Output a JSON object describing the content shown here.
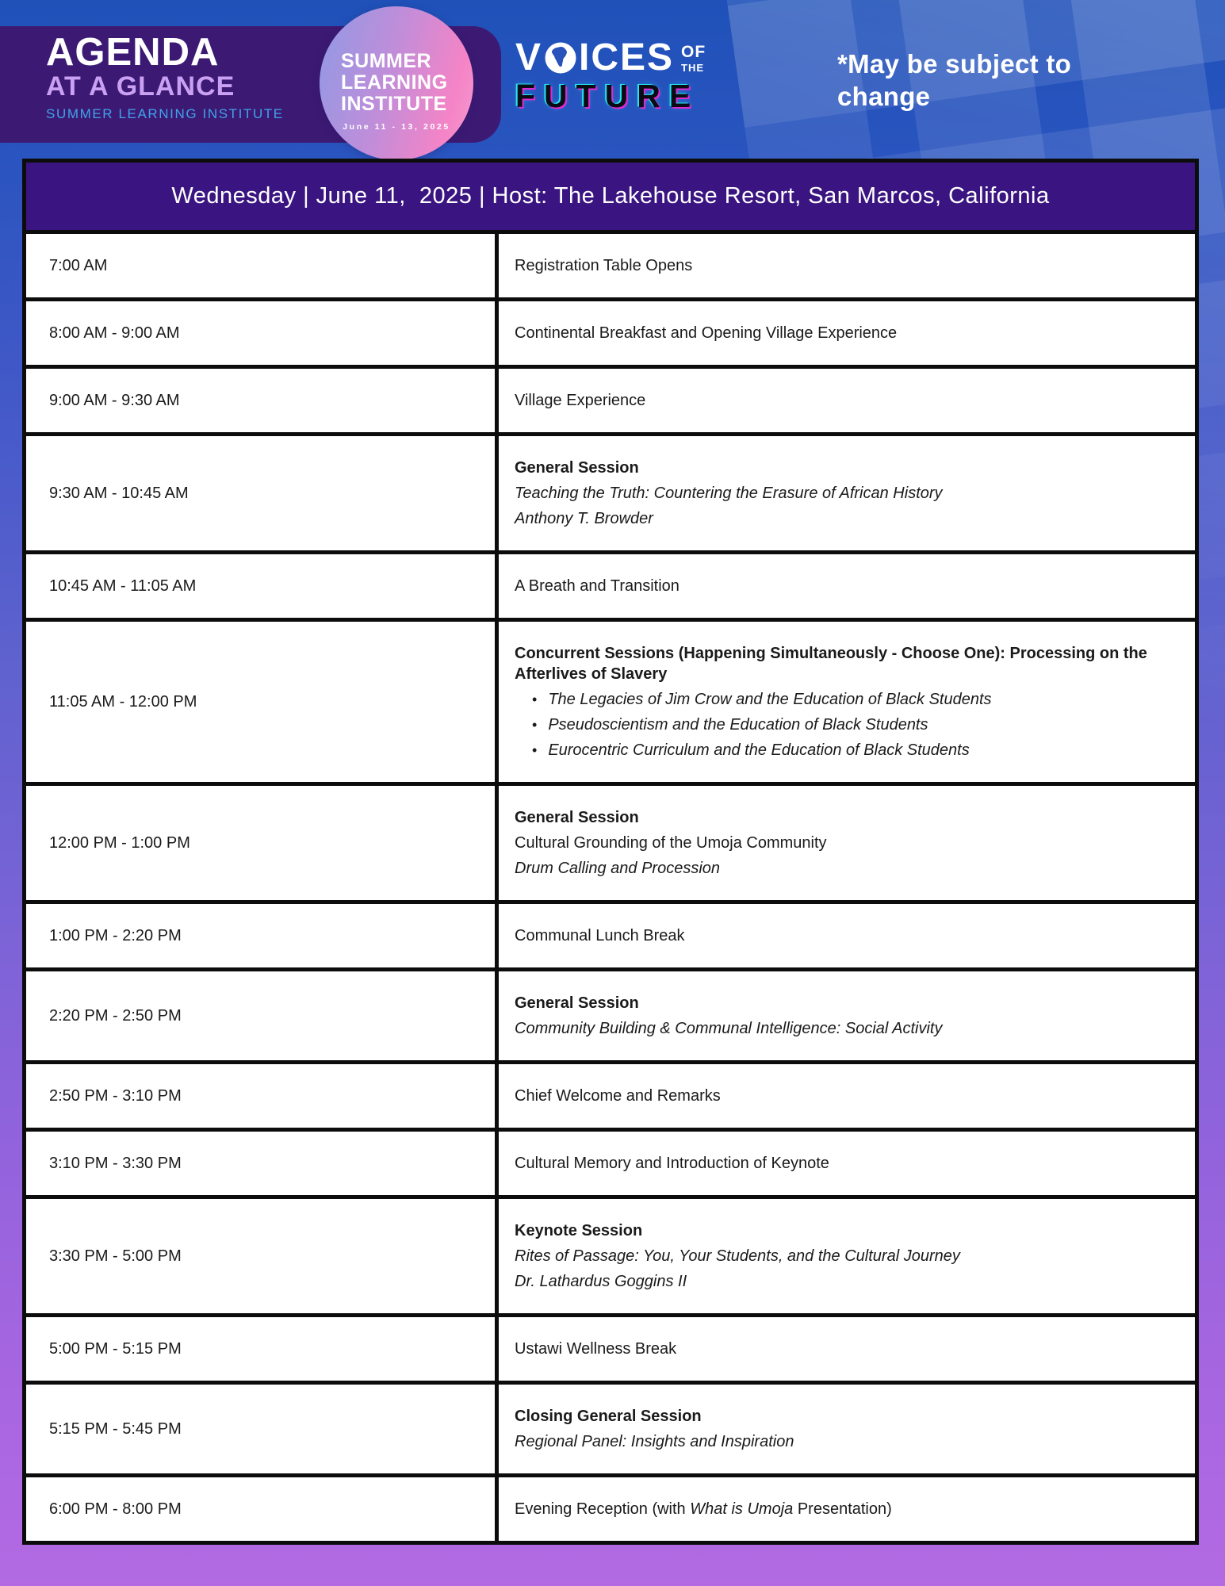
{
  "logo_block": {
    "title": "AGENDA",
    "subtitle": "AT A GLANCE",
    "tagline": "SUMMER LEARNING INSTITUTE"
  },
  "badge": {
    "line1": "SUMMER",
    "line2": "LEARNING",
    "line3": "INSTITUTE",
    "dates": "June 11 - 13, 2025"
  },
  "brand": {
    "voices_v": "V",
    "voices_ices": "ICES",
    "of": "OF",
    "the": "THE",
    "future": "FUTURE",
    "globe_icon": "globe-africa-icon"
  },
  "note": "*May be subject to change",
  "banner": {
    "text": "Wednesday | June 11,  2025 | Host: The Lakehouse Resort, San Marcos, California"
  },
  "colors": {
    "bg_top": "#1f51b9",
    "bg_bottom": "#b36ae3",
    "band_purple": "#3c1a74",
    "banner_purple": "#3a1581",
    "subtitle_lavender": "#c9a0f2",
    "tagline_blue": "#3fa3ea",
    "neon_cyan": "#27e4f2",
    "neon_magenta": "#e02ad0",
    "table_border": "#0c0c0c"
  },
  "schedule": {
    "rows": [
      {
        "time": "7:00 AM",
        "lines": [
          {
            "style": "normal",
            "text": "Registration Table Opens"
          }
        ]
      },
      {
        "time": "8:00 AM - 9:00 AM",
        "lines": [
          {
            "style": "normal",
            "text": "Continental Breakfast and Opening Village Experience"
          }
        ]
      },
      {
        "time": "9:00 AM - 9:30 AM",
        "lines": [
          {
            "style": "normal",
            "text": "Village Experience"
          }
        ]
      },
      {
        "time": "9:30 AM - 10:45 AM",
        "lines": [
          {
            "style": "bold",
            "text": "General Session"
          },
          {
            "style": "italic",
            "text": "Teaching the Truth: Countering the Erasure of African History"
          },
          {
            "style": "italic",
            "text": "Anthony T. Browder"
          }
        ]
      },
      {
        "time": "10:45 AM - 11:05 AM",
        "lines": [
          {
            "style": "normal",
            "text": "A Breath and Transition"
          }
        ]
      },
      {
        "time": "11:05 AM - 12:00 PM",
        "lines": [
          {
            "style": "bold",
            "text": "Concurrent Sessions (Happening Simultaneously - Choose One): Processing on the Afterlives of Slavery"
          },
          {
            "style": "bullet",
            "text": "The Legacies of Jim Crow and the Education of Black Students"
          },
          {
            "style": "bullet",
            "text": "Pseudoscientism and the Education of Black Students"
          },
          {
            "style": "bullet",
            "text": "Eurocentric Curriculum and the Education of Black Students"
          }
        ]
      },
      {
        "time": "12:00 PM - 1:00 PM",
        "lines": [
          {
            "style": "bold",
            "text": "General Session"
          },
          {
            "style": "normal",
            "text": "Cultural Grounding of the Umoja Community"
          },
          {
            "style": "italic",
            "text": "Drum Calling and Procession"
          }
        ]
      },
      {
        "time": "1:00 PM - 2:20 PM",
        "lines": [
          {
            "style": "normal",
            "text": "Communal Lunch Break"
          }
        ]
      },
      {
        "time": "2:20 PM - 2:50 PM",
        "lines": [
          {
            "style": "bold",
            "text": "General Session"
          },
          {
            "style": "italic",
            "text": "Community Building & Communal Intelligence: Social Activity"
          }
        ]
      },
      {
        "time": "2:50 PM - 3:10 PM",
        "lines": [
          {
            "style": "normal",
            "text": "Chief Welcome and Remarks"
          }
        ]
      },
      {
        "time": "3:10 PM - 3:30 PM",
        "lines": [
          {
            "style": "normal",
            "text": "Cultural Memory and Introduction of Keynote"
          }
        ]
      },
      {
        "time": "3:30 PM - 5:00 PM",
        "lines": [
          {
            "style": "bold",
            "text": "Keynote Session"
          },
          {
            "style": "italic",
            "text": "Rites of Passage: You, Your Students, and the Cultural Journey"
          },
          {
            "style": "italic",
            "text": "Dr. Lathardus Goggins II"
          }
        ]
      },
      {
        "time": "5:00 PM - 5:15 PM",
        "lines": [
          {
            "style": "normal",
            "text": "Ustawi Wellness Break"
          }
        ]
      },
      {
        "time": "5:15 PM - 5:45 PM",
        "lines": [
          {
            "style": "bold",
            "text": "Closing General Session"
          },
          {
            "style": "italic",
            "text": "Regional Panel: Insights and Inspiration"
          }
        ]
      },
      {
        "time": "6:00 PM - 8:00 PM",
        "lines": [
          {
            "segments": [
              {
                "text": "Evening Reception (with "
              },
              {
                "text": "What is Umoja",
                "italic": true
              },
              {
                "text": " Presentation)"
              }
            ]
          }
        ]
      }
    ]
  }
}
